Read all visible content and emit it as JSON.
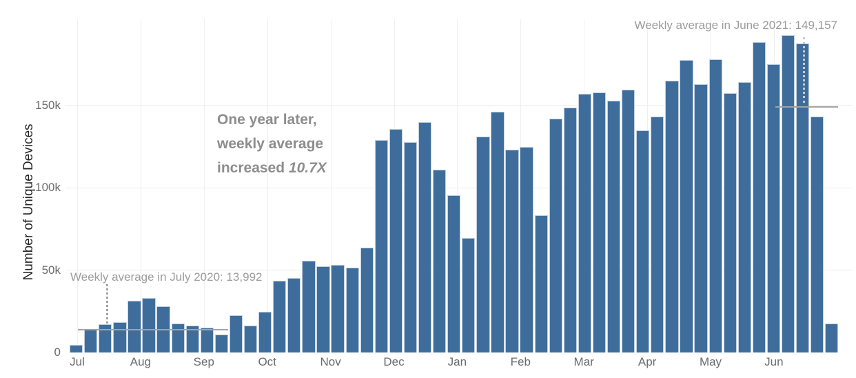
{
  "chart_data": {
    "type": "bar",
    "title": "",
    "ylabel": "Number of Unique Devices",
    "xlabel": "",
    "x_tick_labels": [
      "Jul",
      "Aug",
      "Sep",
      "Oct",
      "Nov",
      "Dec",
      "Jan",
      "Feb",
      "Mar",
      "Apr",
      "May",
      "Jun"
    ],
    "y_ticks": [
      0,
      50000,
      100000,
      150000
    ],
    "y_tick_labels": [
      "0",
      "50k",
      "100k",
      "150k"
    ],
    "ylim": [
      0,
      200000
    ],
    "grid": true,
    "legend_position": "none",
    "bar_color": "#3e6d9c",
    "x_unit": "week",
    "values": [
      4600,
      13900,
      17000,
      18600,
      31400,
      33000,
      28000,
      17600,
      16200,
      15000,
      11000,
      22500,
      16500,
      24600,
      43400,
      45200,
      55600,
      52500,
      53100,
      51300,
      63500,
      129000,
      135700,
      127800,
      139800,
      110800,
      95400,
      69300,
      130900,
      146000,
      123200,
      124700,
      83400,
      141800,
      148700,
      156800,
      157900,
      152900,
      159300,
      134900,
      143100,
      164800,
      177400,
      162700,
      177800,
      157500,
      164100,
      188400,
      174900,
      192300,
      187400,
      143100,
      17400
    ],
    "annotations": {
      "july2020": {
        "label": "Weekly average in July 2020: 13,992",
        "value": 13992
      },
      "june2021": {
        "label": "Weekly average in June 2021: 149,157",
        "value": 149157
      },
      "callout": {
        "line1": "One year later,",
        "line2": "weekly average",
        "line3_text": "increased ",
        "line3_em": "10.7X"
      }
    }
  }
}
